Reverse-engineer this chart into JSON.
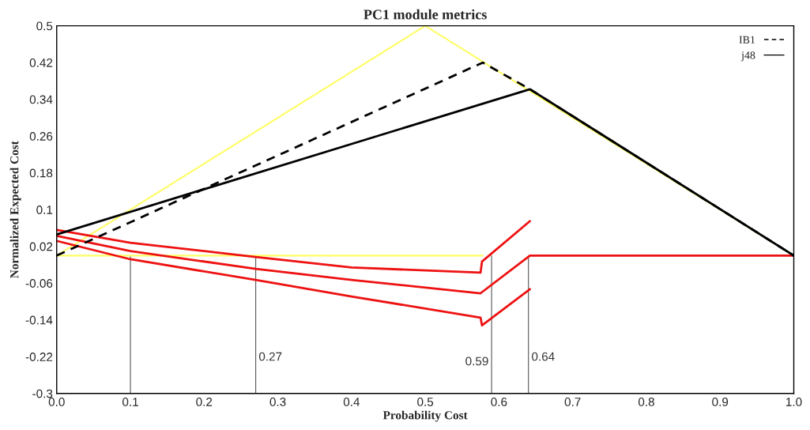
{
  "chart_data": {
    "type": "line",
    "title": "PC1 module metrics",
    "xlabel": "Probability Cost",
    "ylabel": "Normalized Expected Cost",
    "xlim": [
      0.0,
      1.0
    ],
    "xticks": [
      {
        "value": 0.0,
        "label": "0.0"
      },
      0.1,
      0.2,
      0.3,
      0.4,
      0.5,
      0.6,
      0.7,
      0.8,
      0.9,
      {
        "value": 1.0,
        "label": "1.0"
      }
    ],
    "ylim": [
      -0.3,
      0.5
    ],
    "yticks": [
      -0.3,
      -0.22,
      -0.14,
      -0.06,
      0.02,
      0.1,
      0.18,
      0.26,
      0.34,
      0.42,
      0.5
    ],
    "grid": false,
    "legend": "top right",
    "series": [
      {
        "color": "#ffff66",
        "x": [
          0.0,
          0.5,
          1.0
        ],
        "values": [
          0.0,
          0.5,
          0.0
        ]
      },
      {
        "color": "#ffff66",
        "x": [
          0.0,
          0.578
        ],
        "values": [
          0.0,
          0.0
        ]
      },
      {
        "color": "#ee1111",
        "x": [
          0.0,
          0.1,
          0.27,
          0.4,
          0.575,
          0.576,
          0.577,
          0.642
        ],
        "values": [
          0.056,
          0.028,
          -0.003,
          -0.026,
          -0.037,
          null,
          -0.013,
          0.075
        ]
      },
      {
        "color": "#ee1111",
        "x": [
          0.0,
          0.1,
          0.27,
          0.4,
          0.575,
          0.642,
          1.0
        ],
        "values": [
          0.043,
          0.01,
          -0.029,
          -0.053,
          -0.082,
          0.0,
          0.0
        ]
      },
      {
        "color": "#ee1111",
        "x": [
          0.0,
          0.1,
          0.27,
          0.4,
          0.575,
          0.576,
          0.577,
          0.642
        ],
        "values": [
          0.032,
          -0.008,
          -0.053,
          -0.089,
          -0.135,
          null,
          -0.152,
          -0.073
        ]
      },
      {
        "name": "IB1",
        "color": "#000000",
        "line_style": "dashed",
        "x": [
          0.0,
          0.578,
          0.642,
          1.0
        ],
        "values": [
          0.0,
          0.42,
          0.362,
          0.0
        ]
      },
      {
        "name": "j48",
        "color": "#000000",
        "line_style": "solid",
        "x": [
          0.0,
          0.642,
          1.0
        ],
        "values": [
          0.046,
          0.362,
          0.0
        ]
      }
    ],
    "ref_lines": [
      {
        "axis": "x",
        "value": 0.1,
        "color": "#555555"
      },
      {
        "axis": "x",
        "value": 0.27,
        "label": "0.27",
        "color": "#555555"
      },
      {
        "axis": "x",
        "value": 0.59,
        "label": "0.59",
        "color": "#555555"
      },
      {
        "axis": "x",
        "value": 0.64,
        "label": "0.64",
        "color": "#555555"
      }
    ]
  }
}
